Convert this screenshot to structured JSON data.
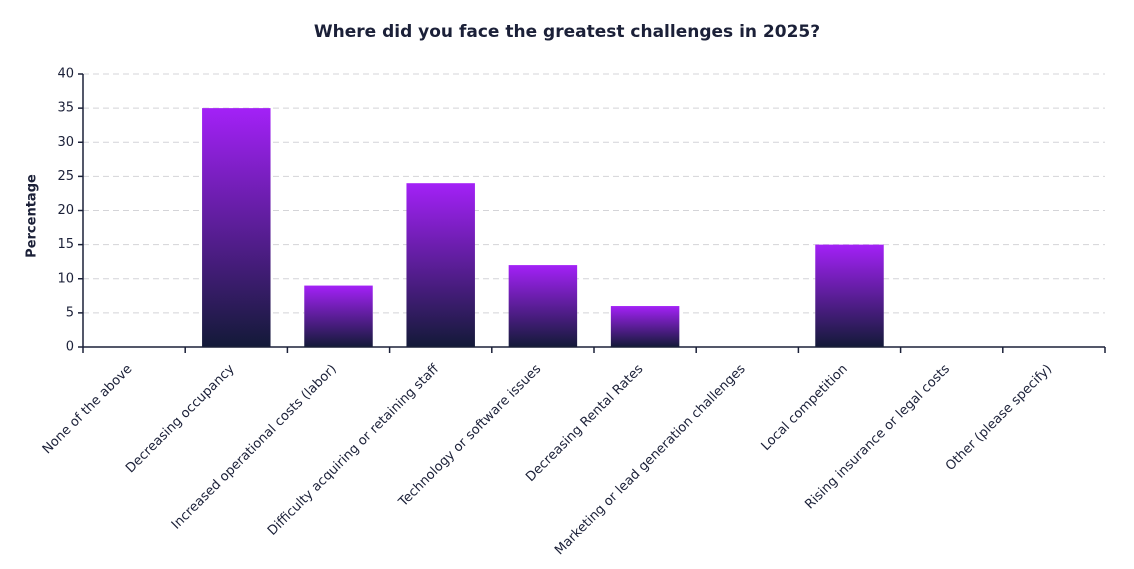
{
  "chart_data": {
    "type": "bar",
    "title": "Where did you face the greatest challenges in 2025?",
    "y_label": "Percentage",
    "categories": [
      "None of the above",
      "Decreasing occupancy",
      "Increased operational costs (labor)",
      "Difficulty acquiring or retaining staff",
      "Technology or software issues",
      "Decreasing Rental Rates",
      "Marketing or lead generation challenges",
      "Local competition",
      "Rising insurance or legal costs",
      "Other (please specify)"
    ],
    "values": [
      0,
      35,
      9,
      24,
      12,
      6,
      0,
      15,
      0,
      0
    ],
    "gradient": [
      "#a321f7",
      "#131a38"
    ],
    "ylim": [
      0,
      40
    ],
    "yticks": [
      0,
      5,
      10,
      15,
      20,
      25,
      30,
      35,
      40
    ],
    "grid": true
  }
}
